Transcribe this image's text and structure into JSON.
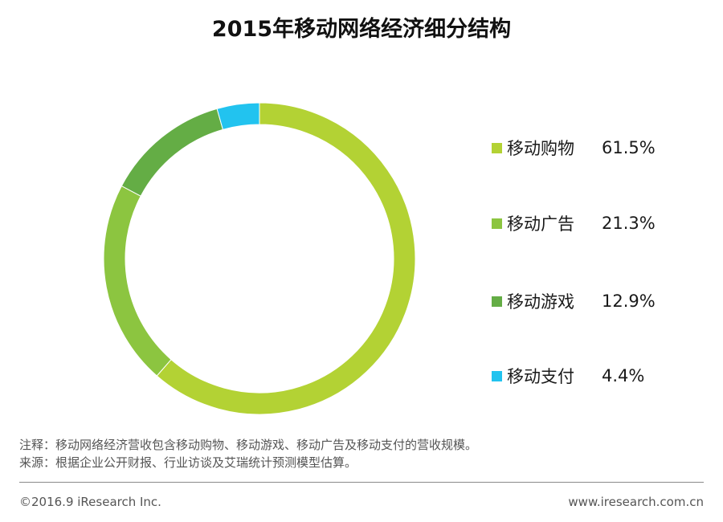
{
  "chart_data": {
    "type": "pie",
    "title": "2015年移动网络经济细分结构",
    "categories": [
      "移动购物",
      "移动广告",
      "移动游戏",
      "移动支付"
    ],
    "values": [
      61.5,
      21.3,
      12.9,
      4.4
    ],
    "value_labels": [
      "61.5%",
      "21.3%",
      "12.9%",
      "4.4%"
    ],
    "colors": [
      "#b3d234",
      "#8cc540",
      "#64ad45",
      "#22c3ef"
    ],
    "legend_position": "right"
  },
  "notes": {
    "note": "注释：移动网络经济营收包含移动购物、移动游戏、移动广告及移动支付的营收规模。",
    "source": "来源：根据企业公开财报、行业访谈及艾瑞统计预测模型估算。"
  },
  "footer": {
    "copyright": "©2016.9 iResearch Inc.",
    "website": "www.iresearch.com.cn"
  }
}
